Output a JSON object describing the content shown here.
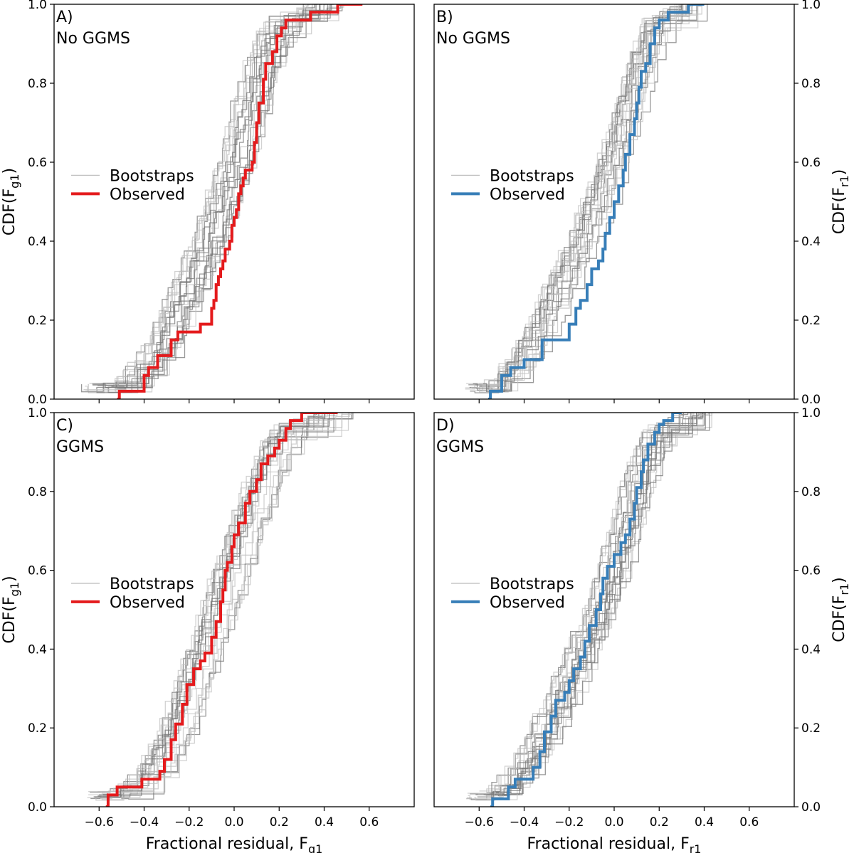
{
  "chart_data": [
    {
      "panel": "A",
      "type": "line",
      "step": true,
      "label_letter": "A)",
      "label_model": "No GGMS",
      "xlabel_main": "",
      "xlabel_sub": "",
      "ylabel_main": "CDF(F",
      "ylabel_sub": "g1",
      "ylabel_close": ")",
      "xlim": [
        -0.8,
        0.8
      ],
      "ylim": [
        0.0,
        1.0
      ],
      "xticks": [
        -0.6,
        -0.4,
        -0.2,
        0.0,
        0.2,
        0.4,
        0.6
      ],
      "yticks": [
        0.0,
        0.2,
        0.4,
        0.6,
        0.8,
        1.0
      ],
      "legend": {
        "placement": "center-left",
        "bootstraps": "Bootstraps",
        "observed": "Observed"
      },
      "observed_color": "#e41a1c",
      "observed_x": [
        -0.52,
        -0.51,
        -0.4,
        -0.38,
        -0.34,
        -0.28,
        -0.25,
        -0.15,
        -0.1,
        -0.09,
        -0.08,
        -0.07,
        -0.06,
        -0.05,
        -0.04,
        -0.02,
        -0.01,
        0.0,
        0.01,
        0.02,
        0.03,
        0.04,
        0.05,
        0.08,
        0.09,
        0.1,
        0.11,
        0.13,
        0.14,
        0.17,
        0.19,
        0.21,
        0.23,
        0.34,
        0.46,
        0.57
      ],
      "observed_y": [
        0.0,
        0.02,
        0.06,
        0.08,
        0.11,
        0.15,
        0.17,
        0.19,
        0.23,
        0.25,
        0.29,
        0.31,
        0.33,
        0.35,
        0.38,
        0.4,
        0.44,
        0.46,
        0.48,
        0.52,
        0.54,
        0.56,
        0.58,
        0.6,
        0.65,
        0.7,
        0.75,
        0.81,
        0.85,
        0.88,
        0.92,
        0.94,
        0.96,
        0.98,
        1.0,
        1.0
      ],
      "bootstrap_center_x": [
        -0.58,
        -0.44,
        -0.34,
        -0.28,
        -0.2,
        -0.12,
        -0.06,
        0.0,
        0.05,
        0.09,
        0.13,
        0.17,
        0.22,
        0.4
      ],
      "bootstrap_center_y": [
        0.02,
        0.06,
        0.12,
        0.2,
        0.3,
        0.4,
        0.5,
        0.6,
        0.7,
        0.78,
        0.86,
        0.92,
        0.97,
        1.0
      ],
      "bootstrap_shift": 0.08
    },
    {
      "panel": "B",
      "type": "line",
      "step": true,
      "label_letter": "B)",
      "label_model": "No GGMS",
      "xlabel_main": "",
      "xlabel_sub": "",
      "ylabel_main": "CDF(F",
      "ylabel_sub": "r1",
      "ylabel_close": ")",
      "xlim": [
        -0.8,
        0.8
      ],
      "ylim": [
        0.0,
        1.0
      ],
      "xticks": [
        -0.6,
        -0.4,
        -0.2,
        0.0,
        0.2,
        0.4,
        0.6
      ],
      "yticks": [
        0.0,
        0.2,
        0.4,
        0.6,
        0.8,
        1.0
      ],
      "legend": {
        "placement": "center-left",
        "bootstraps": "Bootstraps",
        "observed": "Observed"
      },
      "observed_color": "#377eb8",
      "observed_x": [
        -0.56,
        -0.55,
        -0.5,
        -0.46,
        -0.4,
        -0.32,
        -0.2,
        -0.17,
        -0.15,
        -0.12,
        -0.1,
        -0.07,
        -0.05,
        -0.04,
        -0.02,
        0.0,
        0.02,
        0.04,
        0.05,
        0.07,
        0.09,
        0.1,
        0.11,
        0.12,
        0.14,
        0.16,
        0.18,
        0.2,
        0.24,
        0.33,
        0.4
      ],
      "observed_y": [
        0.0,
        0.02,
        0.06,
        0.08,
        0.1,
        0.15,
        0.19,
        0.23,
        0.25,
        0.29,
        0.33,
        0.35,
        0.38,
        0.42,
        0.46,
        0.5,
        0.54,
        0.58,
        0.62,
        0.67,
        0.71,
        0.75,
        0.79,
        0.83,
        0.85,
        0.9,
        0.94,
        0.96,
        0.98,
        1.0,
        1.0
      ],
      "bootstrap_center_x": [
        -0.58,
        -0.48,
        -0.4,
        -0.32,
        -0.24,
        -0.16,
        -0.08,
        -0.02,
        0.04,
        0.08,
        0.12,
        0.16,
        0.2,
        0.34
      ],
      "bootstrap_center_y": [
        0.02,
        0.06,
        0.12,
        0.2,
        0.3,
        0.4,
        0.5,
        0.6,
        0.7,
        0.78,
        0.86,
        0.92,
        0.97,
        1.0
      ],
      "bootstrap_shift": 0.08
    },
    {
      "panel": "C",
      "type": "line",
      "step": true,
      "label_letter": "C)",
      "label_model": "GGMS",
      "xlabel_main": "Fractional residual, F",
      "xlabel_sub": "g1",
      "ylabel_main": "CDF(F",
      "ylabel_sub": "g1",
      "ylabel_close": ")",
      "xlim": [
        -0.8,
        0.8
      ],
      "ylim": [
        0.0,
        1.0
      ],
      "xticks": [
        -0.6,
        -0.4,
        -0.2,
        0.0,
        0.2,
        0.4,
        0.6
      ],
      "yticks": [
        0.0,
        0.2,
        0.4,
        0.6,
        0.8,
        1.0
      ],
      "legend": {
        "placement": "center-left",
        "bootstraps": "Bootstraps",
        "observed": "Observed"
      },
      "observed_color": "#e41a1c",
      "observed_x": [
        -0.57,
        -0.56,
        -0.52,
        -0.41,
        -0.33,
        -0.31,
        -0.28,
        -0.26,
        -0.23,
        -0.21,
        -0.18,
        -0.15,
        -0.13,
        -0.1,
        -0.08,
        -0.06,
        -0.05,
        -0.04,
        -0.03,
        -0.01,
        0.0,
        0.02,
        0.05,
        0.07,
        0.1,
        0.12,
        0.15,
        0.18,
        0.2,
        0.23,
        0.25,
        0.3,
        0.46
      ],
      "observed_y": [
        0.0,
        0.03,
        0.05,
        0.07,
        0.09,
        0.12,
        0.17,
        0.21,
        0.26,
        0.31,
        0.35,
        0.37,
        0.39,
        0.43,
        0.47,
        0.52,
        0.55,
        0.6,
        0.62,
        0.66,
        0.69,
        0.72,
        0.77,
        0.8,
        0.83,
        0.87,
        0.89,
        0.91,
        0.93,
        0.96,
        0.98,
        1.0,
        1.0
      ],
      "bootstrap_center_x": [
        -0.56,
        -0.44,
        -0.34,
        -0.26,
        -0.2,
        -0.14,
        -0.08,
        -0.02,
        0.04,
        0.09,
        0.14,
        0.19,
        0.24,
        0.44
      ],
      "bootstrap_center_y": [
        0.02,
        0.06,
        0.12,
        0.2,
        0.3,
        0.4,
        0.5,
        0.6,
        0.7,
        0.78,
        0.86,
        0.92,
        0.97,
        1.0
      ],
      "bootstrap_shift": 0.08
    },
    {
      "panel": "D",
      "type": "line",
      "step": true,
      "label_letter": "D)",
      "label_model": "GGMS",
      "xlabel_main": "Fractional residual, F",
      "xlabel_sub": "r1",
      "ylabel_main": "CDF(F",
      "ylabel_sub": "r1",
      "ylabel_close": ")",
      "xlim": [
        -0.8,
        0.8
      ],
      "ylim": [
        0.0,
        1.0
      ],
      "xticks": [
        -0.6,
        -0.4,
        -0.2,
        0.0,
        0.2,
        0.4,
        0.6
      ],
      "yticks": [
        0.0,
        0.2,
        0.4,
        0.6,
        0.8,
        1.0
      ],
      "legend": {
        "placement": "center-left",
        "bootstraps": "Bootstraps",
        "observed": "Observed"
      },
      "observed_color": "#377eb8",
      "observed_x": [
        -0.55,
        -0.54,
        -0.47,
        -0.44,
        -0.36,
        -0.33,
        -0.31,
        -0.28,
        -0.26,
        -0.22,
        -0.2,
        -0.18,
        -0.15,
        -0.13,
        -0.11,
        -0.08,
        -0.06,
        -0.05,
        -0.03,
        0.0,
        0.03,
        0.05,
        0.07,
        0.09,
        0.1,
        0.12,
        0.13,
        0.15,
        0.18,
        0.2,
        0.22,
        0.26,
        0.3
      ],
      "observed_y": [
        0.0,
        0.02,
        0.05,
        0.07,
        0.1,
        0.14,
        0.19,
        0.23,
        0.27,
        0.29,
        0.32,
        0.35,
        0.38,
        0.42,
        0.46,
        0.5,
        0.54,
        0.58,
        0.61,
        0.64,
        0.67,
        0.69,
        0.73,
        0.77,
        0.81,
        0.85,
        0.88,
        0.92,
        0.95,
        0.97,
        0.98,
        1.0,
        1.0
      ],
      "bootstrap_center_x": [
        -0.56,
        -0.46,
        -0.38,
        -0.3,
        -0.22,
        -0.14,
        -0.06,
        0.0,
        0.05,
        0.09,
        0.13,
        0.17,
        0.22,
        0.38
      ],
      "bootstrap_center_y": [
        0.02,
        0.06,
        0.12,
        0.2,
        0.3,
        0.4,
        0.5,
        0.6,
        0.7,
        0.78,
        0.86,
        0.92,
        0.97,
        1.0
      ],
      "bootstrap_shift": 0.08
    }
  ]
}
